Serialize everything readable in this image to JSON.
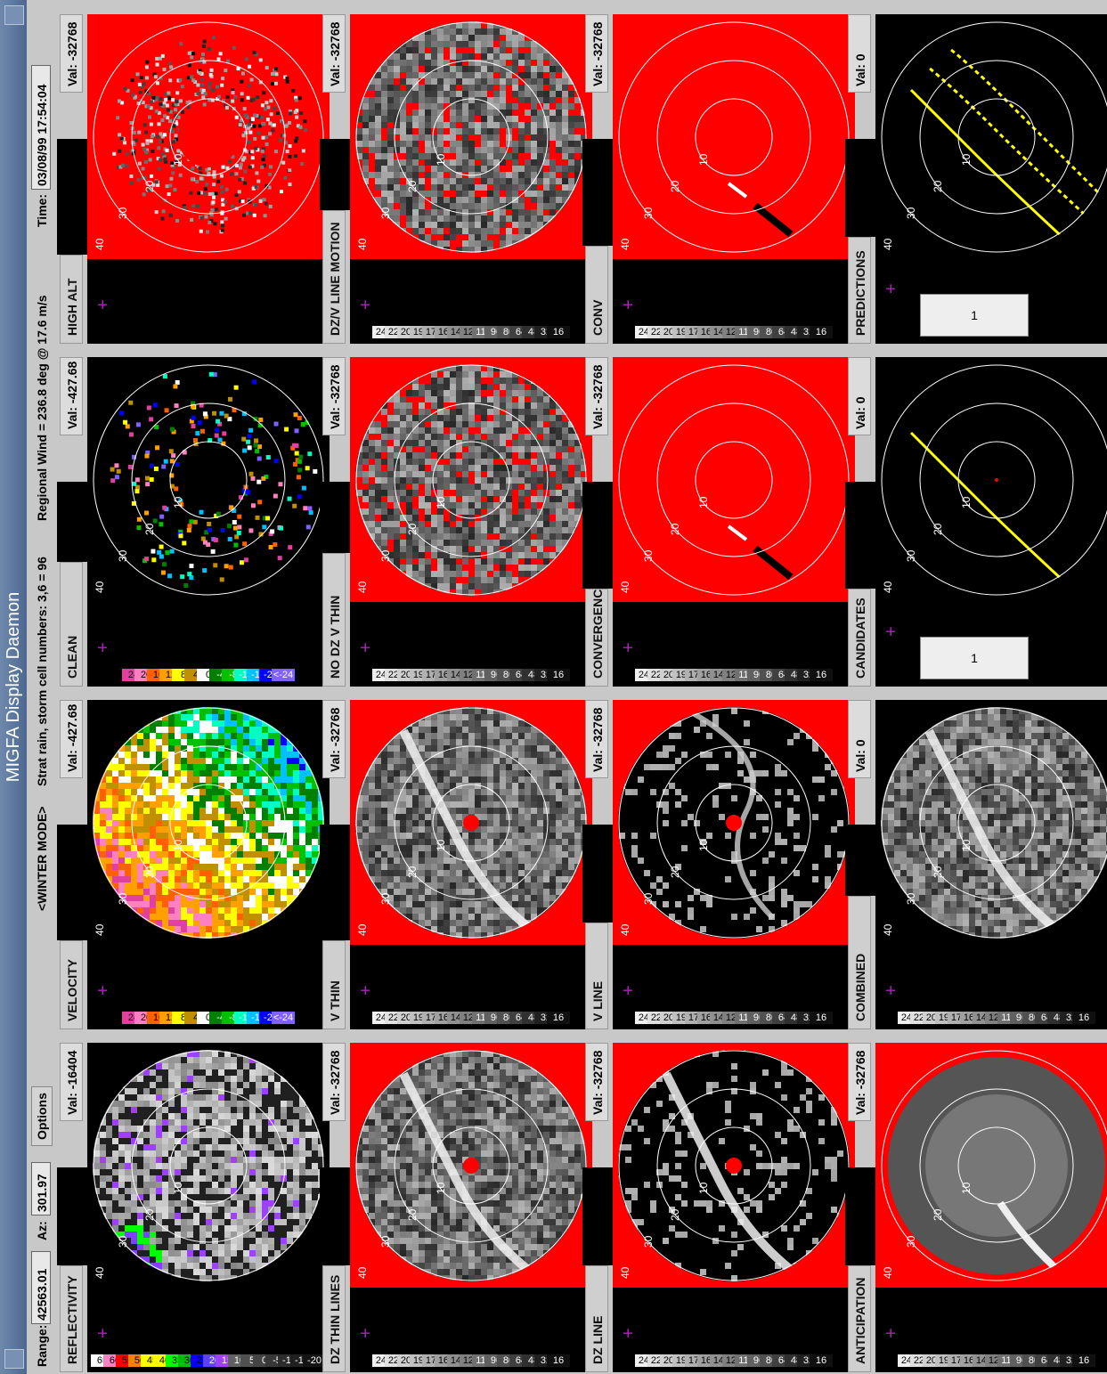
{
  "window": {
    "title": "MIGFA Display Daemon",
    "menu_button_icon": "window-menu-icon",
    "minimize_icon": "minimize-icon"
  },
  "status": {
    "range_label": "Range:",
    "range_value": "42563.01",
    "az_label": "Az:",
    "az_value": "301.97",
    "options_label": "Options",
    "mode": "<WINTER MODE>",
    "cell_info": "Strat rain, storm cell numbers: 3,6 = 96",
    "regional_wind": "Regional Wind = 236.8 deg @ 17.6 m/s",
    "time_label": "Time:",
    "time_value": "03/08/99 17:54:04"
  },
  "val_label": "Val:",
  "ring_labels": [
    "10",
    "20",
    "30",
    "40"
  ],
  "legends": {
    "reflectivity": {
      "labels": [
        "65",
        "60",
        "55",
        "50",
        "45",
        "40",
        "35",
        "30",
        "25",
        "20",
        "15",
        "10",
        "5",
        "0",
        "-5",
        "-10",
        "-15",
        "-20"
      ],
      "colors": [
        "#ffffff",
        "#ff80c0",
        "#ff0000",
        "#ff8000",
        "#ffff00",
        "#ffff00",
        "#00ff00",
        "#00c000",
        "#0000ff",
        "#6040ff",
        "#a040ff",
        "#606060",
        "#505050",
        "#444444",
        "#383838",
        "#2c2c2c",
        "#202020",
        "#141414"
      ]
    },
    "velocity": {
      "labels": [
        "24",
        "20",
        "16",
        "12",
        "8",
        "4",
        "0",
        "-4",
        "-8",
        "-12",
        "-16",
        "-20",
        "<-24"
      ],
      "colors": [
        "#e040a0",
        "#ff80c0",
        "#ff6000",
        "#ffa000",
        "#ffff00",
        "#c09000",
        "#ffffff",
        "#008000",
        "#00c000",
        "#00ffc0",
        "#00c0ff",
        "#0000ff",
        "#8060ff"
      ]
    },
    "gray": {
      "labels": [
        "240",
        "224",
        "208",
        "192",
        "176",
        "160",
        "144",
        "128",
        "112",
        "96",
        "80",
        "64",
        "48",
        "32",
        "16"
      ],
      "colors": [
        "#f0f0f0",
        "#e0e0e0",
        "#d0d0d0",
        "#c0c0c0",
        "#b0b0b0",
        "#a0a0a0",
        "#909090",
        "#808080",
        "#707070",
        "#606060",
        "#505050",
        "#404040",
        "#303030",
        "#202020",
        "#101010"
      ]
    }
  },
  "panels": [
    {
      "title": "REFLECTIVITY",
      "val": "-16404",
      "legend": "reflectivity",
      "style": "reflect"
    },
    {
      "title": "VELOCITY",
      "val": "-427.68",
      "legend": "velocity",
      "style": "velocity"
    },
    {
      "title": "CLEAN VELOCITY",
      "val": "-427.68",
      "legend": "velocity",
      "style": "cleanvel"
    },
    {
      "title": "HIGH ALT WX",
      "val": "-32768",
      "legend": "none",
      "style": "highalt"
    },
    {
      "title": "DZ THIN LINES",
      "val": "-32768",
      "legend": "gray",
      "style": "thin"
    },
    {
      "title": "V THIN LINES",
      "val": "-32768",
      "legend": "gray",
      "style": "thin"
    },
    {
      "title": "NO DZ V THIN LINES",
      "val": "-32768",
      "legend": "gray",
      "style": "nodz"
    },
    {
      "title": "DZ/V LINE MOTION",
      "val": "-32768",
      "legend": "gray",
      "style": "nodz"
    },
    {
      "title": "DZ LINE MOTION",
      "val": "-32768",
      "legend": "gray",
      "style": "linemotion"
    },
    {
      "title": "V LINE MOTION",
      "val": "-32768",
      "legend": "gray",
      "style": "vlinemotion"
    },
    {
      "title": "CONVERGENCE",
      "val": "-32768",
      "legend": "gray",
      "style": "conv"
    },
    {
      "title": "CONV MOTION",
      "val": "-32768",
      "legend": "gray",
      "style": "conv"
    },
    {
      "title": "ANTICIPATION",
      "val": "-32768",
      "legend": "gray",
      "style": "anticip"
    },
    {
      "title": "COMBINED INTEREST",
      "val": "0",
      "legend": "gray",
      "style": "combined"
    },
    {
      "title": "CANDIDATES",
      "val": "0",
      "legend": "box",
      "box_value": "1",
      "style": "candidates"
    },
    {
      "title": "PREDICTIONS",
      "val": "0",
      "legend": "box",
      "box_value": "1",
      "style": "predictions"
    }
  ]
}
